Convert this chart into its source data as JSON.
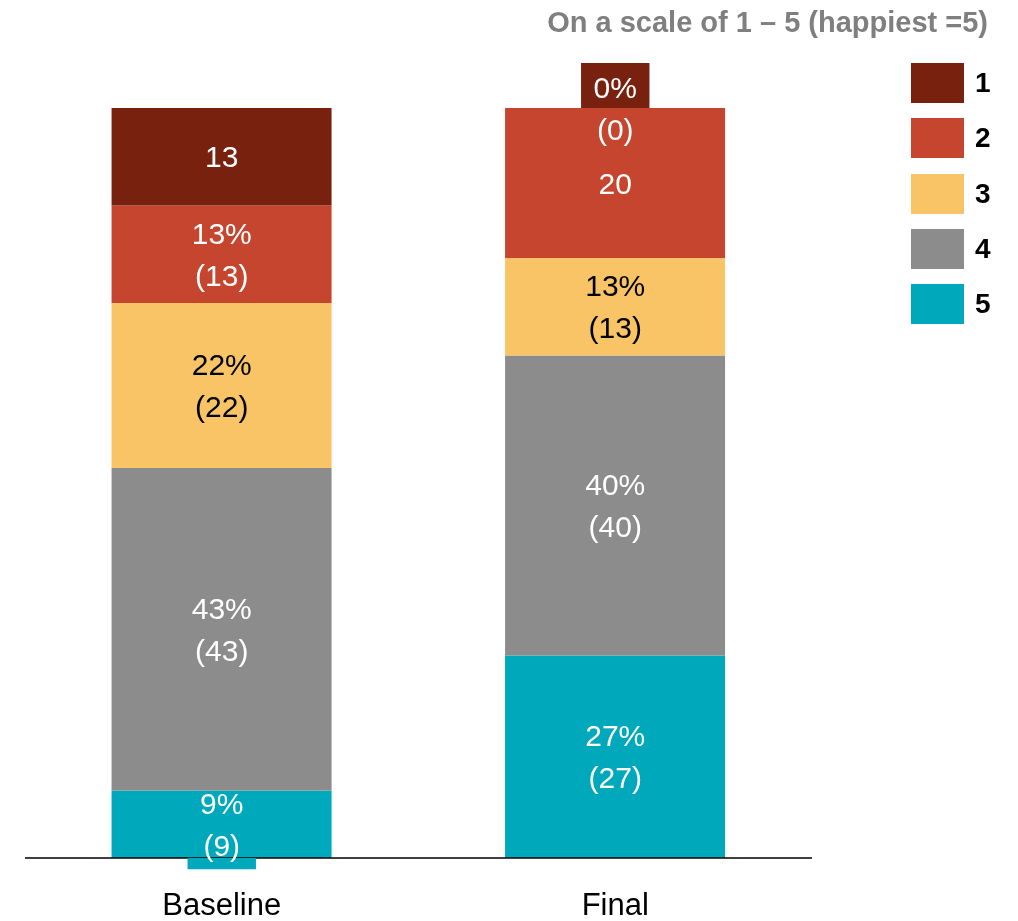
{
  "chart_data": {
    "type": "bar",
    "stacked": true,
    "categories": [
      "Baseline",
      "Final"
    ],
    "series": [
      {
        "name": "5",
        "color": "#00a8bc",
        "values": [
          9,
          27
        ],
        "value_labels": [
          "9%\n(9)",
          "27%\n(27)"
        ]
      },
      {
        "name": "4",
        "color": "#8c8c8c",
        "values": [
          43,
          40
        ],
        "value_labels": [
          "43%\n(43)",
          "40%\n(40)"
        ]
      },
      {
        "name": "3",
        "color": "#f8c466",
        "values": [
          22,
          13
        ],
        "value_labels": [
          "22%\n(22)",
          "13%\n(13)"
        ]
      },
      {
        "name": "2",
        "color": "#c5452f",
        "values": [
          13,
          20
        ],
        "value_labels": [
          "13%\n(13)",
          "20"
        ]
      },
      {
        "name": "1",
        "color": "#78210f",
        "values": [
          13,
          0
        ],
        "value_labels": [
          "13",
          "0%\n(0)"
        ]
      }
    ],
    "ylim": [
      0,
      100
    ],
    "tick_labels": "x",
    "legend": "top right",
    "annotations": [
      "On a scale of 1 – 5 (happiest =5)"
    ]
  }
}
